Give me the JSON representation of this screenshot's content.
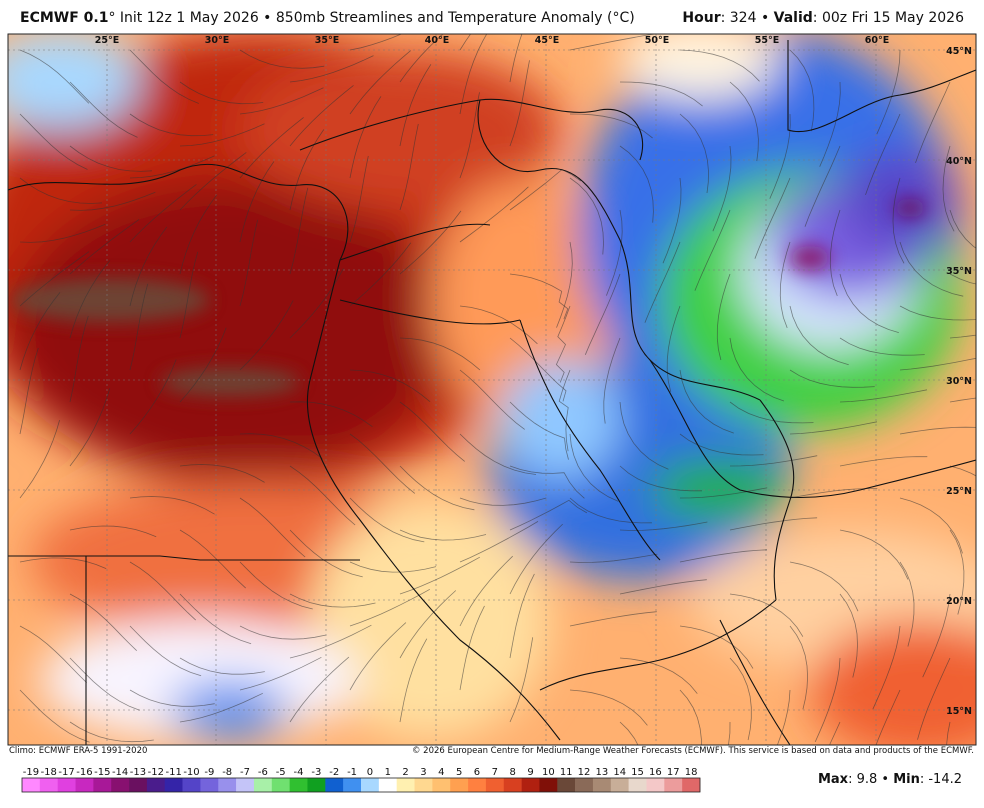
{
  "header": {
    "left": [
      {
        "text": "ECMWF 0.1",
        "bold": true
      },
      {
        "text": "° Init 12z 1 May 2026 • 850mb Streamlines and Temperature Anomaly (°C)",
        "bold": false
      }
    ],
    "right": [
      {
        "text": "Hour",
        "bold": true
      },
      {
        "text": ": 324 • ",
        "bold": false
      },
      {
        "text": "Valid",
        "bold": true
      },
      {
        "text": ": 00z Fri 15 May 2026",
        "bold": false
      }
    ]
  },
  "map": {
    "lon_ticks": [
      {
        "value": 25,
        "label": "25°E"
      },
      {
        "value": 30,
        "label": "30°E"
      },
      {
        "value": 35,
        "label": "35°E"
      },
      {
        "value": 40,
        "label": "40°E"
      },
      {
        "value": 45,
        "label": "45°E"
      },
      {
        "value": 50,
        "label": "50°E"
      },
      {
        "value": 55,
        "label": "55°E"
      },
      {
        "value": 60,
        "label": "60°E"
      }
    ],
    "lat_ticks": [
      {
        "value": 45,
        "label": "45°N"
      },
      {
        "value": 40,
        "label": "40°N"
      },
      {
        "value": 35,
        "label": "35°N"
      },
      {
        "value": 30,
        "label": "30°N"
      },
      {
        "value": 25,
        "label": "25°N"
      },
      {
        "value": 20,
        "label": "20°N"
      },
      {
        "value": 15,
        "label": "15°N"
      }
    ]
  },
  "footer": {
    "climo": "Climo: ECMWF ERA-5 1991-2020",
    "copyright": "© 2026 European Centre for Medium-Range Weather Forecasts (ECMWF). This service is based on data and products of the ECMWF."
  },
  "colorbar": {
    "values": [
      -19,
      -18,
      -17,
      -16,
      -15,
      -14,
      -13,
      -12,
      -11,
      -10,
      -9,
      -8,
      -7,
      -6,
      -5,
      -4,
      -3,
      -2,
      -1,
      0,
      1,
      2,
      3,
      4,
      5,
      6,
      7,
      8,
      9,
      10,
      11,
      12,
      13,
      14,
      15,
      16,
      17,
      18
    ],
    "colors": [
      "#ff88ff",
      "#f060f0",
      "#e040e0",
      "#c828c0",
      "#a81898",
      "#881070",
      "#6a1060",
      "#4a1c8c",
      "#3424a8",
      "#5444c8",
      "#7464dc",
      "#9890ec",
      "#c4c4f8",
      "#a8f0a8",
      "#70e070",
      "#30c030",
      "#10a020",
      "#1060d0",
      "#4090f0",
      "#a8d8ff",
      "#ffffff",
      "#fff0b0",
      "#ffd890",
      "#ffc070",
      "#ffa050",
      "#ff8040",
      "#f06030",
      "#d84020",
      "#b02010",
      "#801008",
      "#6a4838",
      "#8a6a58",
      "#a88a74",
      "#c8ae98",
      "#e8d8cc",
      "#f4c8c8",
      "#ec9c9c",
      "#e06868"
    ]
  },
  "stats": [
    {
      "text": "Max",
      "bold": true
    },
    {
      "text": ": 9.8 • ",
      "bold": false
    },
    {
      "text": "Min",
      "bold": true
    },
    {
      "text": ": -14.2",
      "bold": false
    }
  ]
}
